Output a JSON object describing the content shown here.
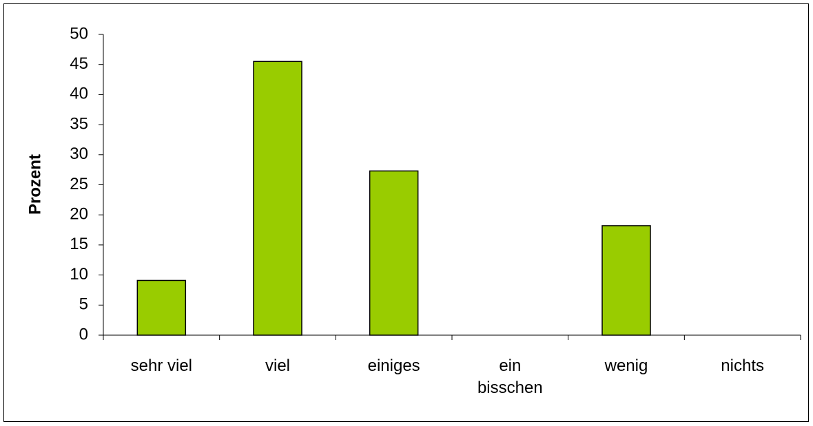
{
  "chart_data": {
    "type": "bar",
    "y_axis_label": "Prozent",
    "categories": [
      "sehr viel",
      "viel",
      "einiges",
      "ein bisschen",
      "wenig",
      "nichts"
    ],
    "values": [
      9.1,
      45.5,
      27.3,
      0,
      18.2,
      0
    ],
    "color": "#99cc00",
    "ylim": [
      0,
      50
    ],
    "yticks": [
      0,
      5,
      10,
      15,
      20,
      25,
      30,
      35,
      40,
      45,
      50
    ],
    "grid": false
  }
}
